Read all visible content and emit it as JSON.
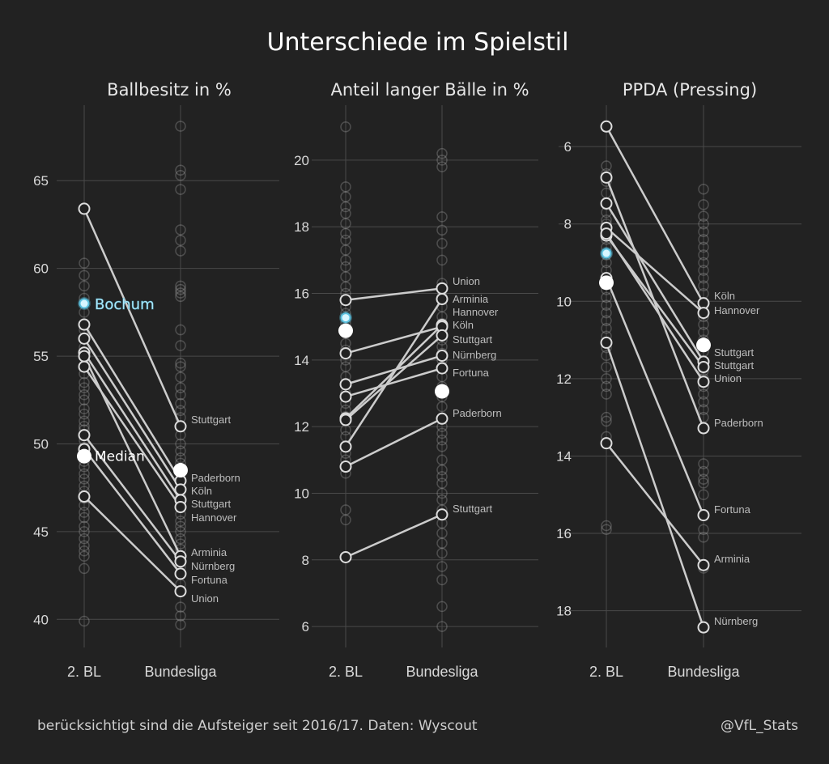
{
  "title": "Unterschiede im Spielstil",
  "footer": {
    "note": "berücksichtigt sind die Aufsteiger seit 2016/17. Daten: Wyscout",
    "handle": "@VfL_Stats"
  },
  "colors": {
    "background": "#222222",
    "lines": "#cccccc",
    "highlight": "#5bc0de",
    "median": "#ffffff"
  },
  "chart_data": [
    {
      "type": "slope",
      "title": "Ballbesitz in %",
      "categories": [
        "2. BL",
        "Bundesliga"
      ],
      "yticks": [
        40,
        45,
        50,
        55,
        60,
        65
      ],
      "ylim": [
        38.4,
        69.3
      ],
      "reversed": false,
      "grid": true,
      "teams": [
        {
          "name": "Stuttgart",
          "values": [
            63.4,
            51.0
          ]
        },
        {
          "name": "Paderborn",
          "values": [
            56.8,
            47.9
          ]
        },
        {
          "name": "Köln",
          "values": [
            56.0,
            47.4
          ]
        },
        {
          "name": "Stuttgart",
          "values": [
            55.2,
            46.8
          ]
        },
        {
          "name": "Hannover",
          "values": [
            54.4,
            46.4
          ]
        },
        {
          "name": "Arminia",
          "values": [
            55.0,
            43.6
          ]
        },
        {
          "name": "Nürnberg",
          "values": [
            50.5,
            43.3
          ]
        },
        {
          "name": "Fortuna",
          "values": [
            49.7,
            42.6
          ]
        },
        {
          "name": "Union",
          "values": [
            47.0,
            41.6
          ]
        }
      ],
      "median": [
        49.3,
        48.5
      ],
      "median_label": "Median",
      "highlight": {
        "name": "Bochum",
        "value": 58.0
      },
      "others": [
        [
          60.3,
          59.6,
          59.0,
          58.3,
          57.5,
          56.5,
          55.5,
          54.0,
          53.5,
          53.2,
          52.8,
          52.5,
          52.0,
          51.7,
          51.3,
          51.0,
          50.8,
          50.2,
          49.8,
          49.5,
          49.0,
          48.7,
          48.3,
          48.0,
          47.6,
          47.3,
          46.9,
          46.5,
          46.1,
          45.8,
          45.3,
          45.0,
          44.6,
          44.2,
          43.9,
          43.6,
          42.9,
          39.9
        ],
        [
          68.1,
          65.6,
          65.3,
          64.5,
          62.2,
          61.6,
          61.0,
          59.0,
          58.8,
          58.6,
          58.4,
          56.5,
          55.6,
          54.6,
          54.4,
          53.8,
          53.2,
          52.8,
          52.3,
          51.9,
          51.5,
          50.5,
          50.0,
          49.6,
          49.2,
          48.9,
          48.0,
          47.0,
          46.5,
          46.0,
          45.6,
          45.3,
          45.0,
          44.6,
          44.3,
          44.0,
          43.0,
          42.0,
          40.7,
          40.2,
          39.7
        ]
      ]
    },
    {
      "type": "slope",
      "title": "Anteil langer Bälle in %",
      "categories": [
        "2. BL",
        "Bundesliga"
      ],
      "yticks": [
        6,
        8,
        10,
        12,
        14,
        16,
        18,
        20
      ],
      "ylim": [
        5.37,
        21.65
      ],
      "reversed": false,
      "grid": true,
      "teams": [
        {
          "name": "Union",
          "values": [
            15.8,
            16.15
          ]
        },
        {
          "name": "Arminia",
          "values": [
            11.4,
            15.83
          ]
        },
        {
          "name": "Hannover",
          "values": [
            12.25,
            15.05
          ]
        },
        {
          "name": "Köln",
          "values": [
            14.2,
            15.0
          ]
        },
        {
          "name": "Stuttgart",
          "values": [
            12.2,
            14.74
          ]
        },
        {
          "name": "Nürnberg",
          "values": [
            13.27,
            14.13
          ]
        },
        {
          "name": "Fortuna",
          "values": [
            12.9,
            13.75
          ]
        },
        {
          "name": "Paderborn",
          "values": [
            10.8,
            12.24
          ]
        },
        {
          "name": "Stuttgart",
          "values": [
            8.08,
            9.36
          ]
        }
      ],
      "median": [
        14.88,
        13.06
      ],
      "highlight": {
        "value": 15.27
      },
      "others": [
        [
          21.0,
          19.2,
          18.9,
          18.6,
          18.4,
          18.1,
          17.8,
          17.6,
          17.3,
          17.0,
          16.8,
          16.5,
          16.2,
          16.0,
          15.6,
          15.4,
          15.1,
          14.8,
          14.5,
          14.3,
          14.0,
          13.8,
          13.5,
          13.3,
          13.0,
          12.7,
          12.5,
          12.3,
          11.9,
          11.7,
          11.2,
          11.0,
          10.8,
          10.6,
          9.5,
          9.2
        ],
        [
          20.2,
          20.0,
          19.8,
          18.3,
          17.9,
          17.5,
          17.0,
          16.3,
          15.9,
          15.6,
          15.3,
          15.1,
          14.9,
          14.6,
          14.4,
          14.2,
          14.0,
          13.8,
          13.5,
          13.2,
          12.9,
          12.6,
          12.0,
          11.8,
          11.6,
          11.4,
          11.0,
          10.7,
          10.5,
          10.3,
          10.0,
          9.8,
          9.5,
          9.1,
          8.8,
          8.5,
          8.2,
          7.8,
          7.4,
          6.6,
          6.0
        ]
      ]
    },
    {
      "type": "slope",
      "title": "PPDA (Pressing)",
      "categories": [
        "2. BL",
        "Bundesliga"
      ],
      "yticks": [
        6,
        8,
        10,
        12,
        14,
        16,
        18
      ],
      "ylim": [
        4.93,
        18.95
      ],
      "reversed": true,
      "grid": true,
      "teams": [
        {
          "name": "Köln",
          "values": [
            5.48,
            10.05
          ]
        },
        {
          "name": "Hannover",
          "values": [
            8.1,
            10.3
          ]
        },
        {
          "name": "Stuttgart",
          "values": [
            7.47,
            11.56
          ]
        },
        {
          "name": "Stuttgart",
          "values": [
            8.3,
            11.7
          ]
        },
        {
          "name": "Union",
          "values": [
            8.25,
            12.08
          ]
        },
        {
          "name": "Paderborn",
          "values": [
            6.8,
            13.28
          ]
        },
        {
          "name": "Fortuna",
          "values": [
            9.4,
            15.53
          ]
        },
        {
          "name": "Arminia",
          "values": [
            13.67,
            16.82
          ]
        },
        {
          "name": "Nürnberg",
          "values": [
            11.07,
            18.43
          ]
        }
      ],
      "median": [
        9.52,
        11.13
      ],
      "highlight": {
        "value": 8.76
      },
      "others": [
        [
          6.5,
          6.7,
          6.9,
          7.2,
          7.5,
          7.7,
          7.9,
          8.0,
          8.2,
          8.4,
          8.6,
          8.8,
          9.0,
          9.2,
          9.5,
          9.7,
          9.9,
          10.1,
          10.3,
          10.5,
          10.7,
          10.9,
          11.2,
          11.4,
          11.7,
          12.0,
          12.2,
          12.4,
          13.0,
          13.1,
          13.5,
          15.8,
          15.9
        ],
        [
          7.1,
          7.5,
          7.8,
          8.0,
          8.2,
          8.4,
          8.6,
          8.8,
          9.0,
          9.2,
          9.4,
          9.6,
          9.8,
          10.1,
          10.4,
          10.6,
          10.8,
          11.0,
          11.3,
          11.8,
          12.0,
          12.2,
          12.4,
          12.6,
          12.8,
          13.0,
          14.2,
          14.4,
          14.6,
          14.7,
          15.0,
          15.9,
          16.1,
          16.9
        ]
      ]
    }
  ]
}
